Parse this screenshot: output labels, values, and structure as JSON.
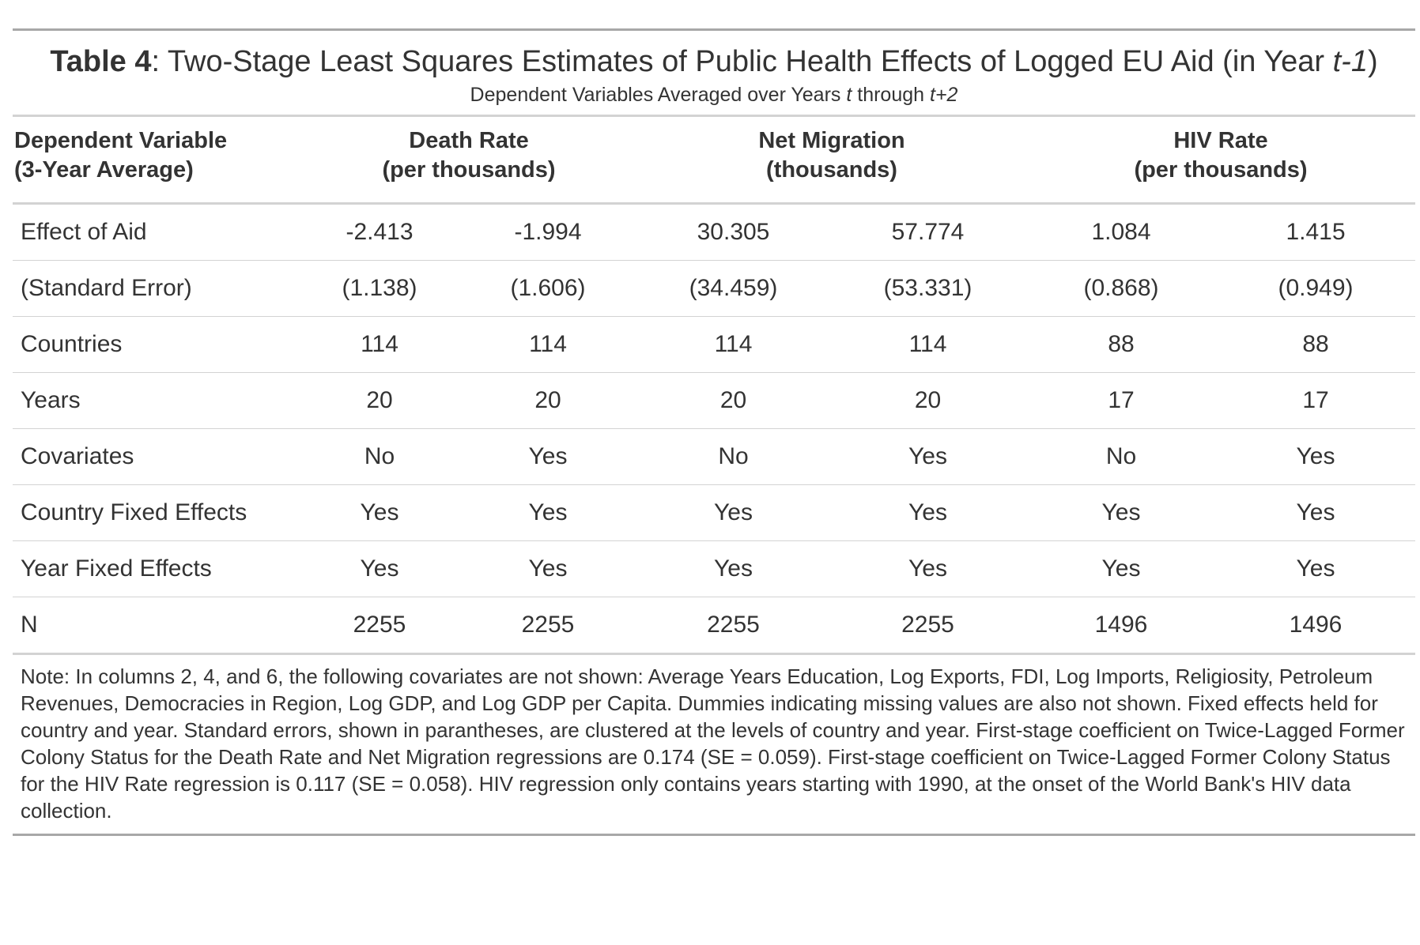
{
  "title": {
    "label": "Table 4",
    "text_before": ": Two-Stage Least Squares Estimates of Public Health Effects of Logged EU Aid (in Year ",
    "text_italic": "t-1",
    "text_after": ")"
  },
  "subtitle": {
    "text_before": "Dependent Variables Averaged over Years ",
    "italic_1": "t",
    "text_middle": " through ",
    "italic_2": "t+2"
  },
  "header": {
    "first_line1": "Dependent Variable",
    "first_line2": "(3-Year Average)",
    "groups": [
      {
        "line1": "Death Rate",
        "line2": "(per thousands)"
      },
      {
        "line1": "Net Migration",
        "line2": "(thousands)"
      },
      {
        "line1": "HIV Rate",
        "line2": "(per thousands)"
      }
    ]
  },
  "rows": [
    {
      "label": "Effect of Aid",
      "values": [
        "-2.413",
        "-1.994",
        "30.305",
        "57.774",
        "1.084",
        "1.415"
      ]
    },
    {
      "label": "(Standard Error)",
      "values": [
        "(1.138)",
        "(1.606)",
        "(34.459)",
        "(53.331)",
        "(0.868)",
        "(0.949)"
      ]
    },
    {
      "label": "Countries",
      "values": [
        "114",
        "114",
        "114",
        "114",
        "88",
        "88"
      ]
    },
    {
      "label": "Years",
      "values": [
        "20",
        "20",
        "20",
        "20",
        "17",
        "17"
      ]
    },
    {
      "label": "Covariates",
      "values": [
        "No",
        "Yes",
        "No",
        "Yes",
        "No",
        "Yes"
      ]
    },
    {
      "label": "Country Fixed Effects",
      "values": [
        "Yes",
        "Yes",
        "Yes",
        "Yes",
        "Yes",
        "Yes"
      ]
    },
    {
      "label": "Year Fixed Effects",
      "values": [
        "Yes",
        "Yes",
        "Yes",
        "Yes",
        "Yes",
        "Yes"
      ]
    },
    {
      "label": "N",
      "values": [
        "2255",
        "2255",
        "2255",
        "2255",
        "1496",
        "1496"
      ]
    }
  ],
  "note": "Note: In columns 2, 4, and 6, the following covariates are not shown: Average Years Education, Log Exports, FDI, Log Imports, Religiosity, Petroleum Revenues, Democracies in Region, Log GDP, and Log GDP per Capita. Dummies indicating missing values are also not shown. Fixed effects held for country and year. Standard errors, shown in parantheses, are clustered at the levels of country and year. First-stage coefficient on Twice-Lagged Former Colony Status for the Death Rate and Net Migration regressions are 0.174 (SE = 0.059). First-stage coefficient on Twice-Lagged Former Colony Status for the HIV Rate regression is 0.117 (SE = 0.058). HIV regression only contains years starting with 1990, at the onset of the World Bank's HIV data collection."
}
